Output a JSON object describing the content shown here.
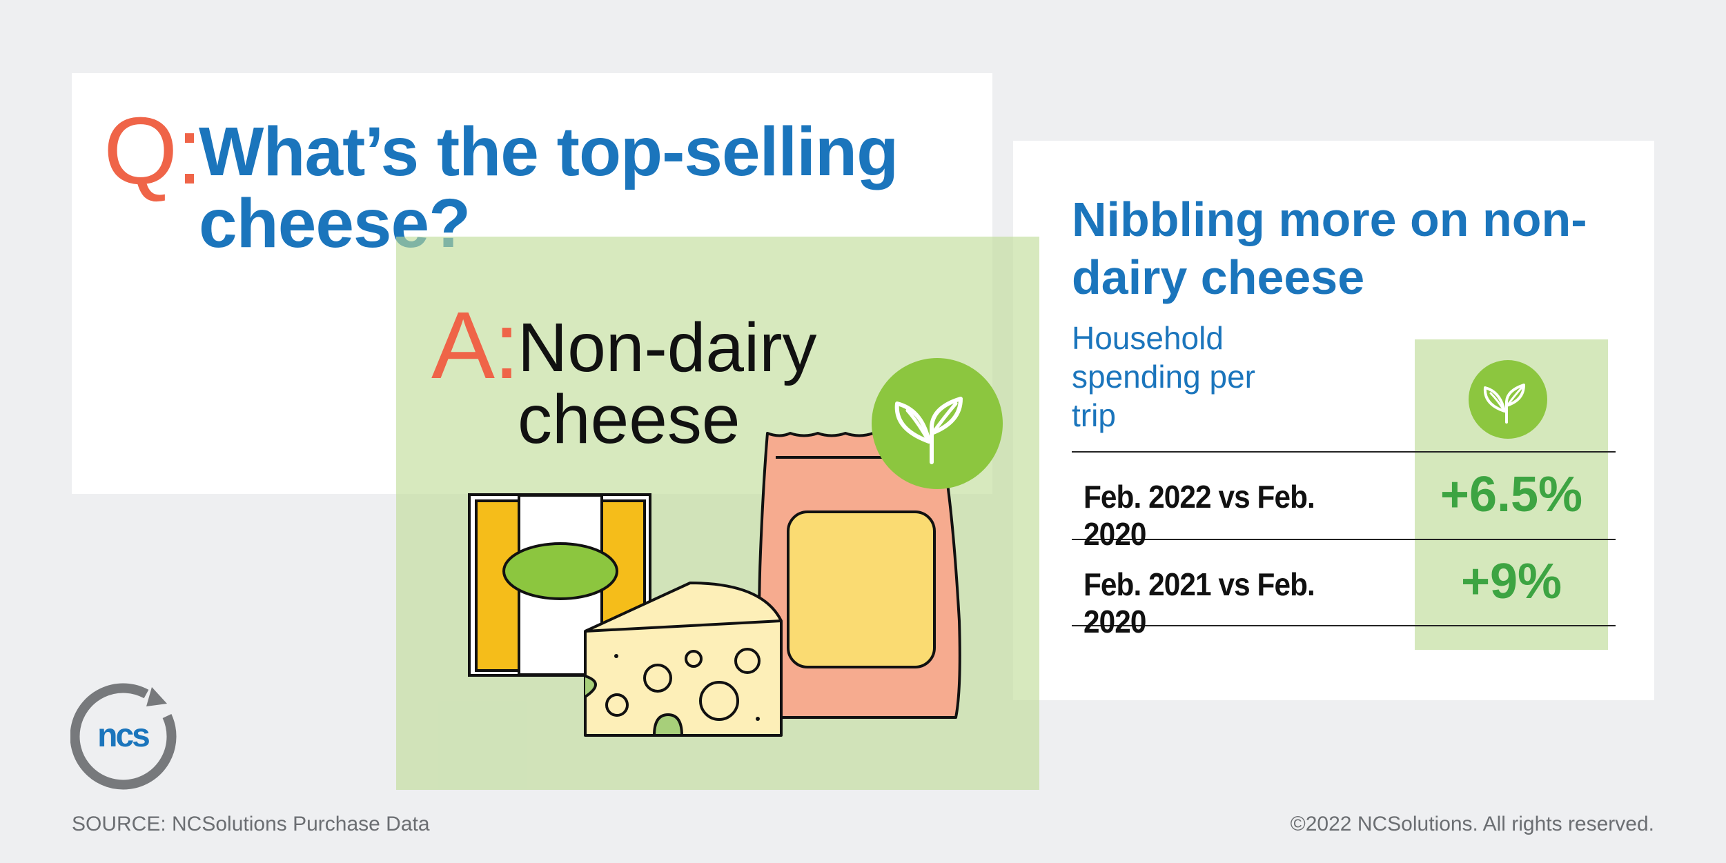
{
  "question": {
    "letter": "Q:",
    "text": "What’s the top-selling cheese?"
  },
  "answer": {
    "letter": "A:",
    "text": "Non-dairy cheese"
  },
  "stats": {
    "title": "Nibbling more on non-dairy cheese",
    "subtitle": "Household spending per trip",
    "rows": [
      {
        "label": "Feb. 2022 vs Feb. 2020",
        "value": "+6.5%"
      },
      {
        "label": "Feb. 2021 vs Feb. 2020",
        "value": "+9%"
      }
    ]
  },
  "logo": {
    "text": "ncs"
  },
  "footer": {
    "source": "SOURCE: NCSolutions Purchase Data",
    "copyright": "©2022 NCSolutions. All rights reserved."
  },
  "icons": [
    "leaf-icon",
    "cheese-block-icon",
    "cheese-wedge-icon",
    "cheese-bag-icon",
    "ncs-logo-icon"
  ],
  "colors": {
    "background": "#eeeff1",
    "blue": "#1b75bc",
    "orange": "#ef6448",
    "green": "#3da442",
    "leaf_badge": "#8cc63f",
    "panel_green": "#d5e8bc"
  }
}
